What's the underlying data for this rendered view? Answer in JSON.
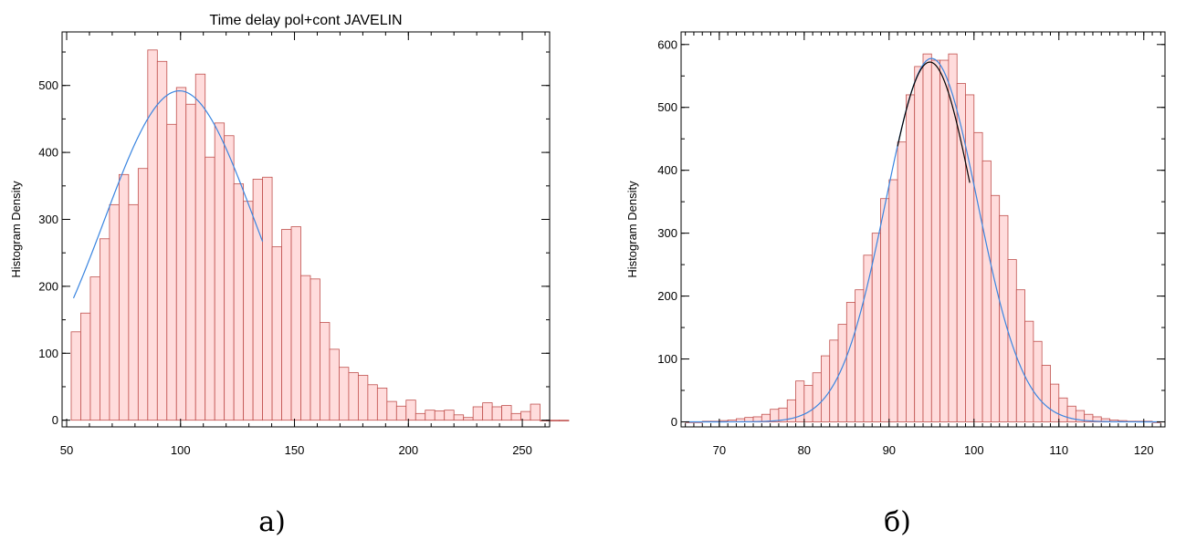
{
  "chart_data": [
    {
      "type": "bar",
      "title": "Time delay pol+cont JAVELIN",
      "xlabel": "",
      "ylabel": "Histogram Density",
      "panel_label": "а)",
      "xlim": [
        48,
        262
      ],
      "ylim": [
        -10,
        580
      ],
      "xticks": [
        50,
        100,
        150,
        200,
        250
      ],
      "yticks": [
        0,
        100,
        200,
        300,
        400,
        500
      ],
      "x_minor_step": 10,
      "y_minor_step": 50,
      "bin_start": 52,
      "bin_width": 4.2,
      "values": [
        132,
        160,
        214,
        271,
        322,
        367,
        322,
        376,
        553,
        536,
        442,
        497,
        472,
        517,
        393,
        444,
        425,
        353,
        327,
        360,
        363,
        259,
        285,
        289,
        216,
        211,
        146,
        106,
        79,
        71,
        67,
        53,
        48,
        28,
        21,
        30,
        10,
        15,
        14,
        15,
        8,
        4,
        20,
        26,
        20,
        22,
        10,
        13,
        24,
        0,
        0,
        0
      ],
      "bar_fill": "#ffdcdc",
      "bar_stroke": "#c0504d",
      "fit_curves": [
        {
          "type": "gaussian",
          "amplitude": 492,
          "mean": 99.5,
          "sigma": 33,
          "x_range": [
            53,
            136
          ],
          "color": "#3a85e0"
        }
      ]
    },
    {
      "type": "bar",
      "title": "",
      "xlabel": "",
      "ylabel": "Histogram Density",
      "panel_label": "б)",
      "xlim": [
        65.5,
        122.5
      ],
      "ylim": [
        -8,
        620
      ],
      "xticks": [
        70,
        80,
        90,
        100,
        110,
        120
      ],
      "yticks": [
        0,
        100,
        200,
        300,
        400,
        500,
        600
      ],
      "x_minor_step": 1,
      "y_minor_step": 50,
      "bin_start": 66,
      "bin_width": 1,
      "values": [
        0,
        0,
        1,
        1,
        2,
        3,
        5,
        7,
        8,
        12,
        20,
        22,
        35,
        65,
        58,
        78,
        105,
        130,
        155,
        190,
        210,
        265,
        300,
        355,
        385,
        445,
        520,
        565,
        585,
        575,
        575,
        585,
        538,
        520,
        460,
        415,
        360,
        328,
        258,
        210,
        160,
        128,
        90,
        60,
        38,
        25,
        18,
        12,
        8,
        5,
        3,
        2,
        1,
        1,
        1,
        0
      ],
      "bar_fill": "#ffdcdc",
      "bar_stroke": "#c0504d",
      "fit_curves": [
        {
          "type": "gaussian",
          "amplitude": 578,
          "mean": 95,
          "sigma": 5.4,
          "x_range": [
            66,
            122
          ],
          "color": "#3a85e0"
        },
        {
          "type": "gaussian",
          "amplitude": 572,
          "mean": 94.8,
          "sigma": 5.2,
          "x_range": [
            91,
            99.5
          ],
          "color": "#000000"
        }
      ]
    }
  ]
}
